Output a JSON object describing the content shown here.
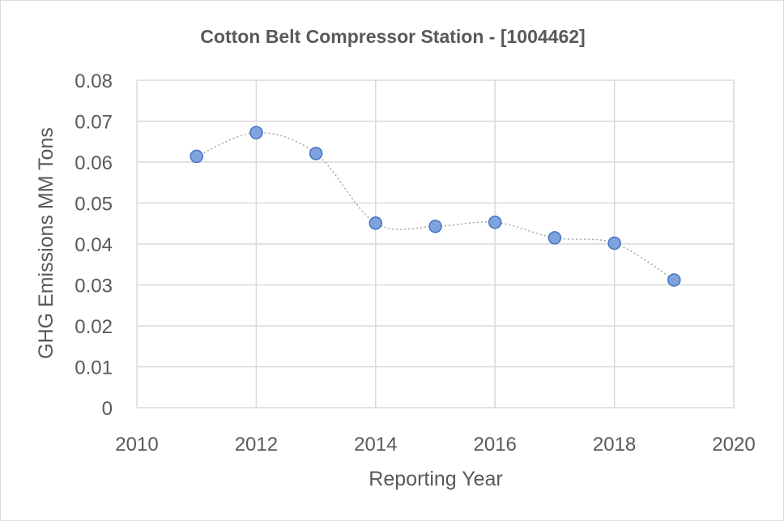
{
  "chart_data": {
    "type": "scatter",
    "title": "Cotton Belt Compressor Station - [1004462]",
    "xlabel": "Reporting Year",
    "ylabel": "GHG Emissions MM Tons",
    "xlim": [
      2010,
      2020
    ],
    "ylim": [
      0,
      0.08
    ],
    "x_ticks": [
      2010,
      2012,
      2014,
      2016,
      2018,
      2020
    ],
    "y_ticks": [
      0,
      0.01,
      0.02,
      0.03,
      0.04,
      0.05,
      0.06,
      0.07,
      0.08
    ],
    "x_tick_labels": [
      "2010",
      "2012",
      "2014",
      "2016",
      "2018",
      "2020"
    ],
    "y_tick_labels": [
      "0",
      "0.01",
      "0.02",
      "0.03",
      "0.04",
      "0.05",
      "0.06",
      "0.07",
      "0.08"
    ],
    "grid": true,
    "smooth_dotted_line": true,
    "series": [
      {
        "x": [
          2011,
          2012,
          2013,
          2014,
          2015,
          2016,
          2017,
          2018,
          2019
        ],
        "y": [
          0.0614,
          0.0672,
          0.0621,
          0.0451,
          0.0443,
          0.0453,
          0.0415,
          0.0402,
          0.0312
        ]
      }
    ],
    "colors": {
      "marker_fill": "#7fa3dc",
      "marker_stroke": "#4472c4",
      "line": "#a6a6a6",
      "grid": "#d9d9d9",
      "text": "#595959"
    }
  }
}
